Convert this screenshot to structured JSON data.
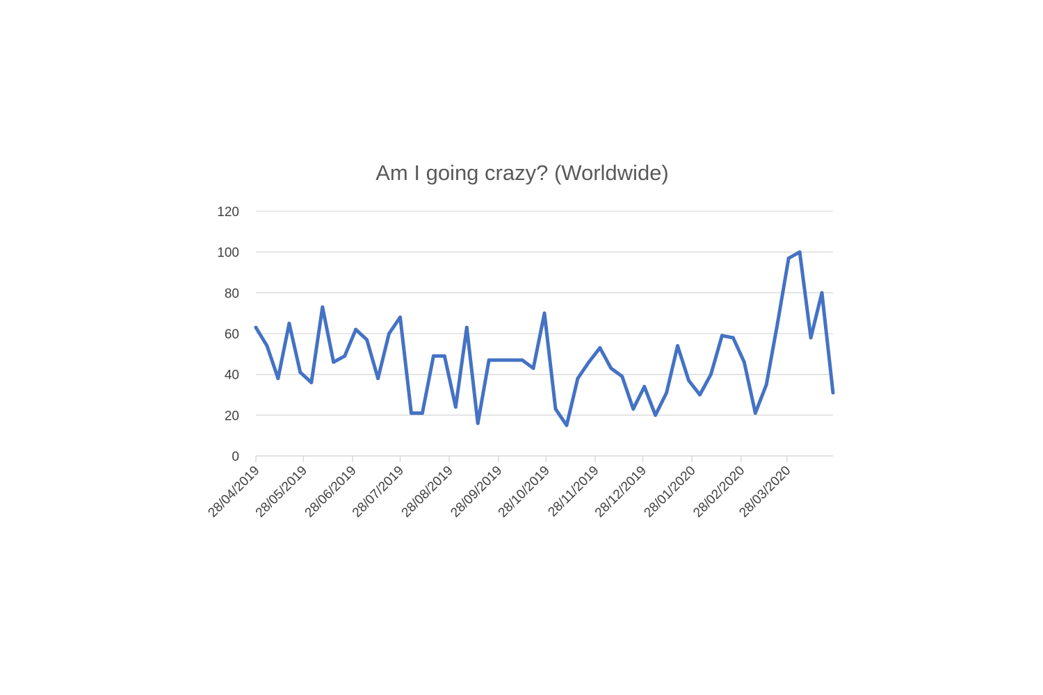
{
  "chart_data": {
    "type": "line",
    "title": "Am I going crazy? (Worldwide)",
    "xlabel": "",
    "ylabel": "",
    "ylim": [
      0,
      120
    ],
    "yticks": [
      0,
      20,
      40,
      60,
      80,
      100,
      120
    ],
    "xlim": [
      "2019-04-28",
      "2020-04-26"
    ],
    "x_tick_dates": [
      "2019-04-28",
      "2019-05-28",
      "2019-06-28",
      "2019-07-28",
      "2019-08-28",
      "2019-09-28",
      "2019-10-28",
      "2019-11-28",
      "2019-12-28",
      "2020-01-28",
      "2020-02-28",
      "2020-03-28"
    ],
    "x_tick_labels": [
      "28/04/2019",
      "28/05/2019",
      "28/06/2019",
      "28/07/2019",
      "28/08/2019",
      "28/09/2019",
      "28/10/2019",
      "28/11/2019",
      "28/12/2019",
      "28/01/2020",
      "28/02/2020",
      "28/03/2020"
    ],
    "grid": true,
    "legend": "none",
    "series": [
      {
        "color": "#4472C4",
        "x": [
          "2019-04-28",
          "2019-05-05",
          "2019-05-12",
          "2019-05-19",
          "2019-05-26",
          "2019-06-02",
          "2019-06-09",
          "2019-06-16",
          "2019-06-23",
          "2019-06-30",
          "2019-07-07",
          "2019-07-14",
          "2019-07-21",
          "2019-07-28",
          "2019-08-04",
          "2019-08-11",
          "2019-08-18",
          "2019-08-25",
          "2019-09-01",
          "2019-09-08",
          "2019-09-15",
          "2019-09-22",
          "2019-09-29",
          "2019-10-06",
          "2019-10-13",
          "2019-10-20",
          "2019-10-27",
          "2019-11-03",
          "2019-11-10",
          "2019-11-17",
          "2019-11-24",
          "2019-12-01",
          "2019-12-08",
          "2019-12-15",
          "2019-12-22",
          "2019-12-29",
          "2020-01-05",
          "2020-01-12",
          "2020-01-19",
          "2020-01-26",
          "2020-02-02",
          "2020-02-09",
          "2020-02-16",
          "2020-02-23",
          "2020-03-01",
          "2020-03-08",
          "2020-03-15",
          "2020-03-22",
          "2020-03-29",
          "2020-04-05",
          "2020-04-12",
          "2020-04-19",
          "2020-04-26"
        ],
        "values": [
          63,
          54,
          38,
          65,
          41,
          36,
          73,
          46,
          49,
          62,
          57,
          38,
          60,
          68,
          21,
          21,
          49,
          49,
          24,
          63,
          16,
          47,
          47,
          47,
          47,
          43,
          70,
          23,
          15,
          38,
          46,
          53,
          43,
          39,
          23,
          34,
          20,
          31,
          54,
          37,
          30,
          40,
          59,
          58,
          46,
          21,
          35,
          65,
          97,
          100,
          58,
          80,
          31
        ]
      }
    ]
  }
}
